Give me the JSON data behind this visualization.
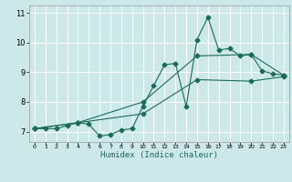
{
  "xlabel": "Humidex (Indice chaleur)",
  "background_color": "#cce8e8",
  "grid_color": "#ffffff",
  "line_color": "#1a6b5a",
  "xlim": [
    -0.5,
    23.5
  ],
  "ylim": [
    6.65,
    11.25
  ],
  "xticks": [
    0,
    1,
    2,
    3,
    4,
    5,
    6,
    7,
    8,
    9,
    10,
    11,
    12,
    13,
    14,
    15,
    16,
    17,
    18,
    19,
    20,
    21,
    22,
    23
  ],
  "yticks": [
    7,
    8,
    9,
    10,
    11
  ],
  "line1_x": [
    0,
    1,
    2,
    3,
    4,
    5,
    6,
    7,
    8,
    9,
    10,
    11,
    12,
    13,
    14,
    15,
    16,
    17,
    18,
    19,
    20,
    21,
    22,
    23
  ],
  "line1_y": [
    7.1,
    7.1,
    7.1,
    7.2,
    7.3,
    7.25,
    6.85,
    6.9,
    7.05,
    7.1,
    7.85,
    8.55,
    9.25,
    9.3,
    7.85,
    10.1,
    10.85,
    9.75,
    9.8,
    9.55,
    9.6,
    9.05,
    8.95,
    8.9
  ],
  "line2_x": [
    0,
    4,
    10,
    15,
    20,
    23
  ],
  "line2_y": [
    7.1,
    7.3,
    8.0,
    9.55,
    9.6,
    8.9
  ],
  "line3_x": [
    0,
    4,
    10,
    15,
    20,
    23
  ],
  "line3_y": [
    7.1,
    7.3,
    7.6,
    8.75,
    8.7,
    8.85
  ],
  "markersize": 2.5
}
